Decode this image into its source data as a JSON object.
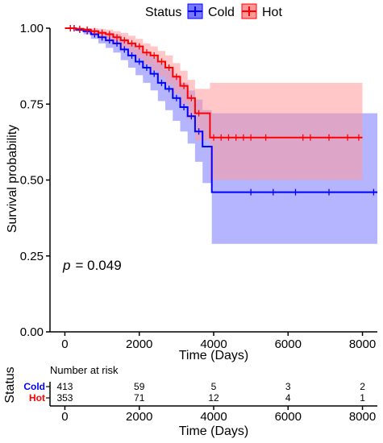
{
  "chart_data": {
    "type": "line",
    "subtype": "kaplan-meier",
    "xlabel": "Time (Days)",
    "ylabel": "Survival probability",
    "xlim": [
      -400,
      8400
    ],
    "ylim": [
      0,
      1
    ],
    "xticks": [
      0,
      2000,
      4000,
      6000,
      8000
    ],
    "yticks": [
      0.0,
      0.25,
      0.5,
      0.75,
      1.0
    ],
    "ytick_labels": [
      "0.00",
      "0.25",
      "0.50",
      "0.75",
      "1.00"
    ],
    "legend": {
      "title": "Status",
      "placement": "top",
      "entries": [
        "Cold",
        "Hot"
      ]
    },
    "annotation": {
      "p_label": "p",
      "p_value": "= 0.049"
    },
    "series": [
      {
        "name": "Cold",
        "color": "#0000ff",
        "band_color": "#7777ff",
        "steps": [
          [
            0,
            1.0
          ],
          [
            300,
            0.995
          ],
          [
            500,
            0.99
          ],
          [
            700,
            0.98
          ],
          [
            900,
            0.97
          ],
          [
            1100,
            0.96
          ],
          [
            1300,
            0.95
          ],
          [
            1500,
            0.93
          ],
          [
            1700,
            0.91
          ],
          [
            1900,
            0.89
          ],
          [
            2100,
            0.87
          ],
          [
            2300,
            0.85
          ],
          [
            2500,
            0.82
          ],
          [
            2700,
            0.8
          ],
          [
            2900,
            0.77
          ],
          [
            3100,
            0.74
          ],
          [
            3300,
            0.71
          ],
          [
            3500,
            0.66
          ],
          [
            3700,
            0.61
          ],
          [
            3950,
            0.46
          ],
          [
            8400,
            0.46
          ]
        ],
        "upper": [
          [
            0,
            1.0
          ],
          [
            300,
            1.0
          ],
          [
            500,
            1.0
          ],
          [
            700,
            0.995
          ],
          [
            900,
            0.99
          ],
          [
            1100,
            0.985
          ],
          [
            1300,
            0.98
          ],
          [
            1500,
            0.965
          ],
          [
            1700,
            0.95
          ],
          [
            1900,
            0.935
          ],
          [
            2100,
            0.92
          ],
          [
            2300,
            0.905
          ],
          [
            2500,
            0.885
          ],
          [
            2700,
            0.865
          ],
          [
            2900,
            0.845
          ],
          [
            3100,
            0.82
          ],
          [
            3300,
            0.795
          ],
          [
            3500,
            0.765
          ],
          [
            3700,
            0.73
          ],
          [
            3950,
            0.72
          ],
          [
            8400,
            0.72
          ]
        ],
        "lower": [
          [
            0,
            1.0
          ],
          [
            300,
            0.99
          ],
          [
            500,
            0.98
          ],
          [
            700,
            0.965
          ],
          [
            900,
            0.95
          ],
          [
            1100,
            0.935
          ],
          [
            1300,
            0.92
          ],
          [
            1500,
            0.895
          ],
          [
            1700,
            0.87
          ],
          [
            1900,
            0.845
          ],
          [
            2100,
            0.82
          ],
          [
            2300,
            0.795
          ],
          [
            2500,
            0.76
          ],
          [
            2700,
            0.73
          ],
          [
            2900,
            0.695
          ],
          [
            3100,
            0.66
          ],
          [
            3300,
            0.62
          ],
          [
            3500,
            0.56
          ],
          [
            3700,
            0.49
          ],
          [
            3950,
            0.29
          ],
          [
            8400,
            0.29
          ]
        ],
        "censor_x": [
          150,
          250,
          400,
          600,
          800,
          1000,
          1200,
          1400,
          1600,
          1800,
          2000,
          2200,
          2400,
          2600,
          2800,
          3000,
          3200,
          3400,
          3600,
          5000,
          5600,
          6200,
          7100,
          8300
        ]
      },
      {
        "name": "Hot",
        "color": "#ff0000",
        "band_color": "#ff9999",
        "steps": [
          [
            0,
            1.0
          ],
          [
            300,
            0.998
          ],
          [
            500,
            0.995
          ],
          [
            700,
            0.99
          ],
          [
            900,
            0.985
          ],
          [
            1100,
            0.98
          ],
          [
            1300,
            0.97
          ],
          [
            1500,
            0.96
          ],
          [
            1700,
            0.95
          ],
          [
            1900,
            0.94
          ],
          [
            2100,
            0.92
          ],
          [
            2300,
            0.91
          ],
          [
            2500,
            0.89
          ],
          [
            2700,
            0.87
          ],
          [
            2900,
            0.84
          ],
          [
            3100,
            0.81
          ],
          [
            3300,
            0.77
          ],
          [
            3500,
            0.72
          ],
          [
            3900,
            0.64
          ],
          [
            8000,
            0.64
          ]
        ],
        "upper": [
          [
            0,
            1.0
          ],
          [
            300,
            1.0
          ],
          [
            500,
            1.0
          ],
          [
            700,
            1.0
          ],
          [
            900,
            0.998
          ],
          [
            1100,
            0.995
          ],
          [
            1300,
            0.99
          ],
          [
            1500,
            0.985
          ],
          [
            1700,
            0.975
          ],
          [
            1900,
            0.965
          ],
          [
            2100,
            0.95
          ],
          [
            2300,
            0.94
          ],
          [
            2500,
            0.925
          ],
          [
            2700,
            0.91
          ],
          [
            2900,
            0.885
          ],
          [
            3100,
            0.86
          ],
          [
            3300,
            0.83
          ],
          [
            3500,
            0.8
          ],
          [
            3900,
            0.82
          ],
          [
            8000,
            0.82
          ]
        ],
        "lower": [
          [
            0,
            1.0
          ],
          [
            300,
            0.99
          ],
          [
            500,
            0.985
          ],
          [
            700,
            0.975
          ],
          [
            900,
            0.965
          ],
          [
            1100,
            0.955
          ],
          [
            1300,
            0.945
          ],
          [
            1500,
            0.93
          ],
          [
            1700,
            0.915
          ],
          [
            1900,
            0.9
          ],
          [
            2100,
            0.88
          ],
          [
            2300,
            0.86
          ],
          [
            2500,
            0.84
          ],
          [
            2700,
            0.815
          ],
          [
            2900,
            0.785
          ],
          [
            3100,
            0.75
          ],
          [
            3300,
            0.7
          ],
          [
            3500,
            0.63
          ],
          [
            3900,
            0.5
          ],
          [
            8000,
            0.5
          ]
        ],
        "censor_x": [
          150,
          250,
          400,
          600,
          800,
          1000,
          1200,
          1400,
          1600,
          1800,
          2000,
          2200,
          2400,
          2600,
          2800,
          3000,
          3200,
          3400,
          3600,
          4000,
          4200,
          4400,
          4600,
          4800,
          5000,
          5400,
          6400,
          6600,
          7100,
          7600,
          7900
        ]
      }
    ],
    "risk_table": {
      "title": "Number at risk",
      "ylabel": "Status",
      "xlabel": "Time (Days)",
      "times": [
        0,
        2000,
        4000,
        6000,
        8000
      ],
      "rows": [
        {
          "label": "Cold",
          "color": "#0000ff",
          "values": [
            "413",
            "59",
            "5",
            "3",
            "2"
          ]
        },
        {
          "label": "Hot",
          "color": "#ff0000",
          "values": [
            "353",
            "71",
            "12",
            "4",
            "1"
          ]
        }
      ]
    }
  }
}
